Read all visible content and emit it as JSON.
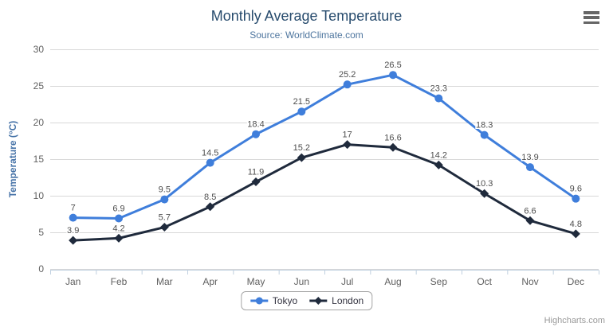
{
  "header": {
    "title": "Monthly Average Temperature",
    "subtitle": "Source: WorldClimate.com"
  },
  "icons": {
    "context_menu": "hamburger-icon"
  },
  "credits_label": "Highcharts.com",
  "colors": {
    "title": "#274b6d",
    "subtitle": "#4d759e",
    "axis_title": "#4572a7",
    "axis_labels": "#606060",
    "gridline": "#d8d8d8",
    "axis_line": "#c0d0e0",
    "data_label": "#4d4d4d"
  },
  "chart_data": {
    "type": "line",
    "title": "Monthly Average Temperature",
    "subtitle": "Source: WorldClimate.com",
    "categories": [
      "Jan",
      "Feb",
      "Mar",
      "Apr",
      "May",
      "Jun",
      "Jul",
      "Aug",
      "Sep",
      "Oct",
      "Nov",
      "Dec"
    ],
    "series": [
      {
        "name": "Tokyo",
        "color": "#3f7edb",
        "marker": "circle",
        "values": [
          7,
          6.9,
          9.5,
          14.5,
          18.4,
          21.5,
          25.2,
          26.5,
          23.3,
          18.3,
          13.9,
          9.6
        ]
      },
      {
        "name": "London",
        "color": "#1f2a3c",
        "marker": "diamond",
        "values": [
          3.9,
          4.2,
          5.7,
          8.5,
          11.9,
          15.2,
          17,
          16.6,
          14.2,
          10.3,
          6.6,
          4.8
        ]
      }
    ],
    "xlabel": "",
    "ylabel": "Temperature (°C)",
    "ylim": [
      0,
      30
    ],
    "y_tick_interval": 5,
    "grid": true,
    "data_labels": true,
    "legend_position": "bottom"
  }
}
